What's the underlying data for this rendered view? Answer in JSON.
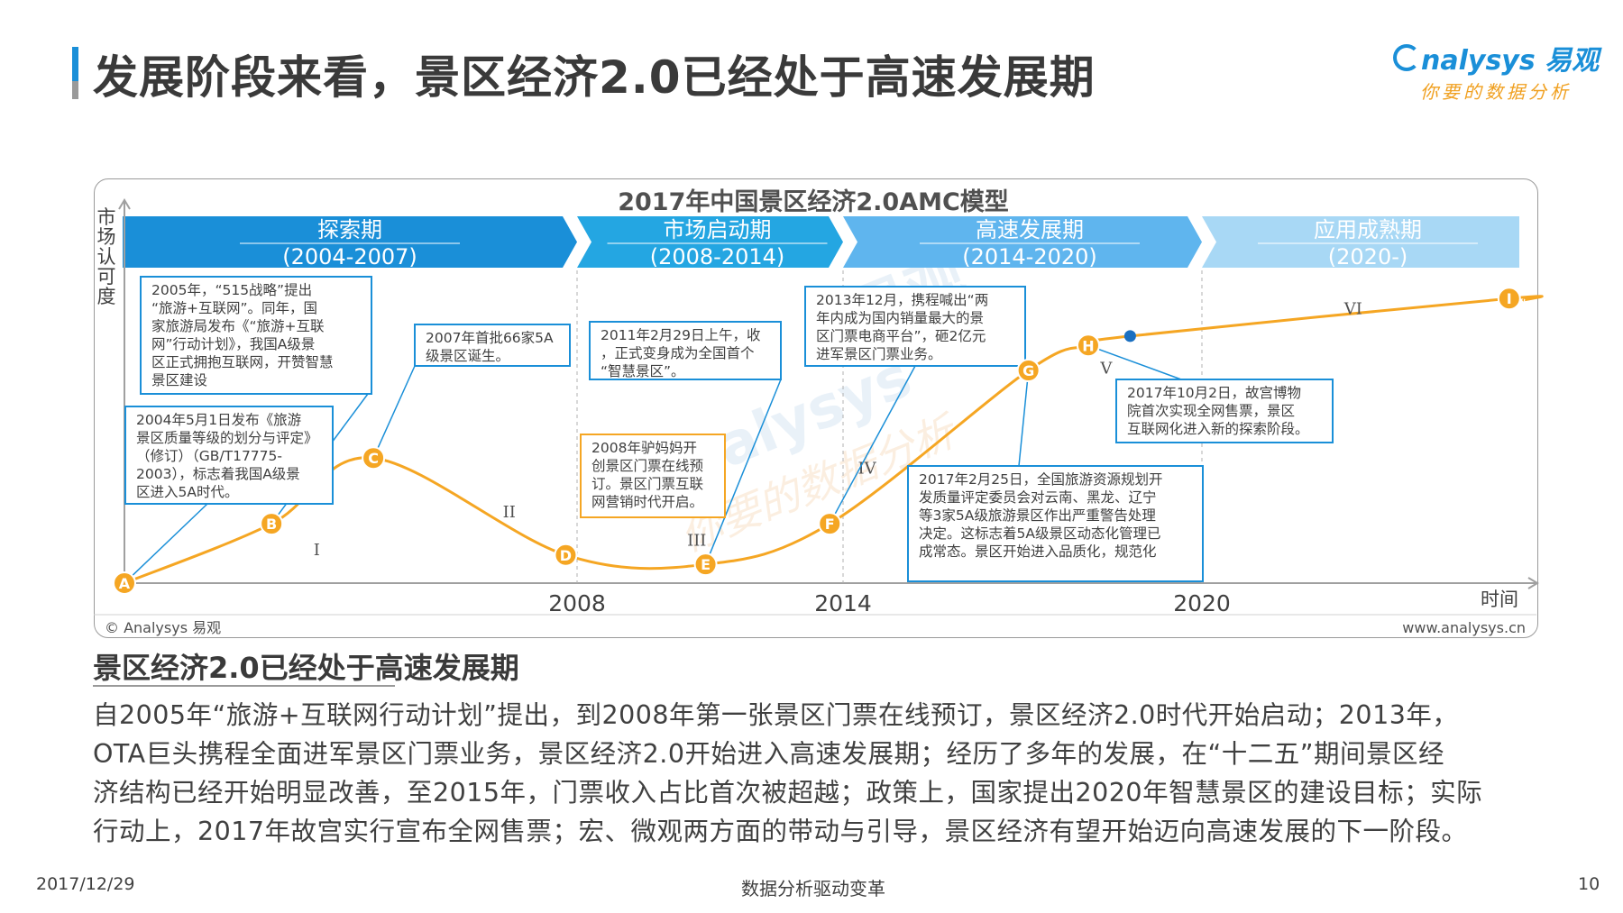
{
  "page": {
    "title": "发展阶段来看，景区经济2.0已经处于高速发展期",
    "logo_main": "nalysys 易观",
    "logo_sub": "你要的数据分析",
    "section_title": "景区经济2.0已经处于高速发展期",
    "body_lines": [
      "自2005年“旅游+互联网行动计划”提出，到2008年第一张景区门票在线预订，景区经济2.0时代开始启动；2013年，",
      "OTA巨头携程全面进军景区门票业务，景区经济2.0开始进入高速发展期；经历了多年的发展，在“十二五”期间景区经",
      "济结构已经开始明显改善，至2015年，门票收入占比首次被超越；政策上，国家提出2020年智慧景区的建设目标；实际",
      "行动上，2017年故宫实行宣布全网售票；宏、微观两方面的带动与引导，景区经济有望开始迈向高速发展的下一阶段。"
    ],
    "footer_date": "2017/12/29",
    "footer_slogan": "数据分析驱动变革",
    "footer_page": "10"
  },
  "chart_data": {
    "type": "line",
    "title": "2017年中国景区经济2.0AMC模型",
    "ylabel": "市场认可度",
    "xlabel": "时间",
    "x_ticks": [
      "2008",
      "2014",
      "2020"
    ],
    "source_left": "© Analysys 易观",
    "source_right": "www.analysys.cn",
    "watermark": "Analysys 易观 你要的数据分析",
    "phases": [
      {
        "name": "探索期",
        "period": "(2004-2007)",
        "color": "#1a8fd8"
      },
      {
        "name": "市场启动期",
        "period": "(2008-2014)",
        "color": "#24a6e2"
      },
      {
        "name": "高速发展期",
        "period": "(2014-2020)",
        "color": "#5fb5ee"
      },
      {
        "name": "应用成熟期",
        "period": "(2020-)",
        "color": "#a8d8f5"
      }
    ],
    "curve_color": "#f5a623",
    "points": [
      {
        "label": "A",
        "x": 2004.0,
        "y": 0.0
      },
      {
        "label": "B",
        "x": 2005.3,
        "y": 0.19
      },
      {
        "label": "C",
        "x": 2006.2,
        "y": 0.4
      },
      {
        "label": "D",
        "x": 2007.9,
        "y": 0.09
      },
      {
        "label": "E",
        "x": 2010.9,
        "y": 0.06
      },
      {
        "label": "F",
        "x": 2013.7,
        "y": 0.19
      },
      {
        "label": "G",
        "x": 2017.1,
        "y": 0.68
      },
      {
        "label": "H",
        "x": 2018.1,
        "y": 0.76
      },
      {
        "label": "I",
        "x": 2026.5,
        "y": 0.91
      }
    ],
    "extra_marker": {
      "x": 2018.8,
      "y": 0.79,
      "color": "#1a6fc0"
    },
    "stage_labels": [
      {
        "label": "I",
        "x": 2005.7,
        "y": 0.09
      },
      {
        "label": "II",
        "x": 2007.4,
        "y": 0.21
      },
      {
        "label": "III",
        "x": 2010.7,
        "y": 0.12
      },
      {
        "label": "IV",
        "x": 2014.4,
        "y": 0.35
      },
      {
        "label": "V",
        "x": 2018.4,
        "y": 0.67
      },
      {
        "label": "VI",
        "x": 2023.2,
        "y": 0.86
      }
    ],
    "annotations": [
      {
        "text": "2005年，“515战略”提出“旅游+互联网”。同年，国家旅游局发布《“旅游+互联网”行动计划》，我国A级景区正式拥抱互联网，开赞智慧景区建设",
        "target": "B",
        "border": "#1a8fd8"
      },
      {
        "text": "2004年5月1日发布《旅游景区质量等级的划分与评定》（修订）（GB/T17775-2003），标志着我国A级景区进入5A时代。",
        "target": "A",
        "border": "#1a8fd8"
      },
      {
        "text": "2007年首批66家5A级景区诞生。",
        "target": "C",
        "border": "#1a8fd8"
      },
      {
        "text": "2011年2月29日上午，收，正式变身成为全国首个“智慧景区”。",
        "target": "E",
        "border": "#1a8fd8"
      },
      {
        "text": "2008年驴妈妈开创景区门票在线预订。景区门票互联网营销时代开启。",
        "target": "D",
        "border": "#f5a623"
      },
      {
        "text": "2013年12月，携程喊出“两年内成为国内销量最大的景区门票电商平台”，砸2亿元进军景区门票业务。",
        "target": "F",
        "border": "#1a8fd8"
      },
      {
        "text": "2017年10月2日，故宫博物院首次实现全网售票，景区互联网化进入新的探索阶段。",
        "target": "H",
        "border": "#1a8fd8"
      },
      {
        "text": "2017年2月25日，全国旅游资源规划开发质量评定委员会对云南、黑龙、辽宁等3家5A级旅游景区作出严重警告处理决定。这标志着5A级景区动态化管理已成常态。景区开始进入品质化，规范化",
        "target": "G",
        "border": "#1a8fd8"
      }
    ]
  }
}
